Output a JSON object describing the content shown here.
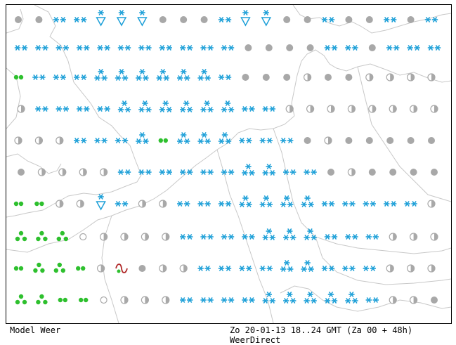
{
  "footer": {
    "model_label": "Model Weer",
    "valid_time": "Zo 20-01-13 18..24 GMT (Za 00 + 48h)",
    "source": "WeerDirect"
  },
  "colors": {
    "background": "#ffffff",
    "coastline": "#c8c8c8",
    "snow": "#1ea0d8",
    "rain": "#2ec02e",
    "cloud": "#a8a8a8",
    "fog": "#b02828",
    "frame": "#000000"
  },
  "legend_symbols": {
    "L": "light-snow-icon",
    "M": "moderate-snow-icon",
    "H": "heavy-snow-icon",
    "V": "snow-shower-icon",
    "R": "light-rain-icon",
    "D": "rain-icon",
    "C": "overcast-icon",
    "P": "partly-cloudy-icon",
    "O": "clear-icon",
    "F": "fog-icon"
  },
  "grid": {
    "rows": [
      "CCLLVVVCCCLVVCCLCCLCL",
      "LLLLLLLLLLLCCCCLLCLLL",
      "RLLLMMMMMMLCCCPCCPPPP",
      "PLLLLMMMMMMLLPPPPPPPP",
      "PPPLLLMRMMMLLLCPCCCCC",
      "CPPPPLLLLLLMMLLCPCCCC",
      "RRPPVLPPLLLMMMMLLLLLP",
      "DDDOPPPPLLLLMMMLLLPPP",
      "RDDRPFCPPLLLLMMLLLPPP",
      "DDRROPPPLLLLMMMMMLPPC"
    ],
    "first_column_x": 17,
    "row_y": [
      21,
      61,
      103,
      148,
      193,
      238,
      283,
      330,
      375,
      420
    ]
  }
}
